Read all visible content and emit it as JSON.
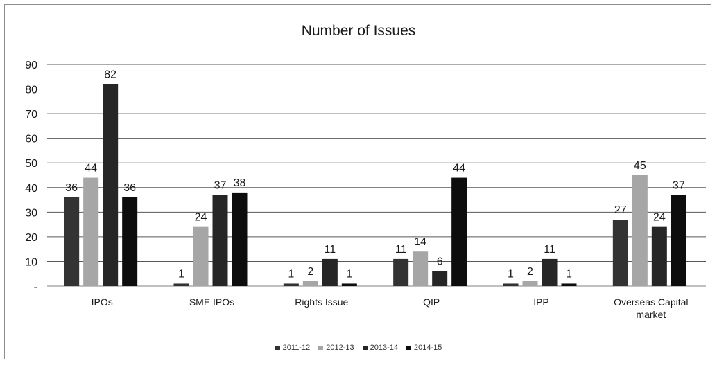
{
  "chart_data": {
    "type": "bar",
    "title": "Number of Issues",
    "xlabel": "",
    "ylabel": "",
    "ylim": [
      0,
      90
    ],
    "yticks": [
      "-",
      "10",
      "20",
      "30",
      "40",
      "50",
      "60",
      "70",
      "80",
      "90"
    ],
    "categories": [
      [
        "IPOs"
      ],
      [
        "SME IPOs"
      ],
      [
        "Rights Issue"
      ],
      [
        "QIP"
      ],
      [
        "IPP"
      ],
      [
        "Overseas Capital",
        "market"
      ]
    ],
    "series": [
      {
        "name": "2011-12",
        "color": "#333333",
        "values": [
          36,
          1,
          1,
          11,
          1,
          27
        ]
      },
      {
        "name": "2012-13",
        "color": "#a6a6a6",
        "values": [
          44,
          24,
          2,
          14,
          2,
          45
        ]
      },
      {
        "name": "2013-14",
        "color": "#262626",
        "values": [
          82,
          37,
          11,
          6,
          11,
          24
        ]
      },
      {
        "name": "2014-15",
        "color": "#0d0d0d",
        "values": [
          36,
          38,
          1,
          44,
          1,
          37
        ]
      }
    ],
    "grid": true,
    "legend_position": "bottom"
  }
}
